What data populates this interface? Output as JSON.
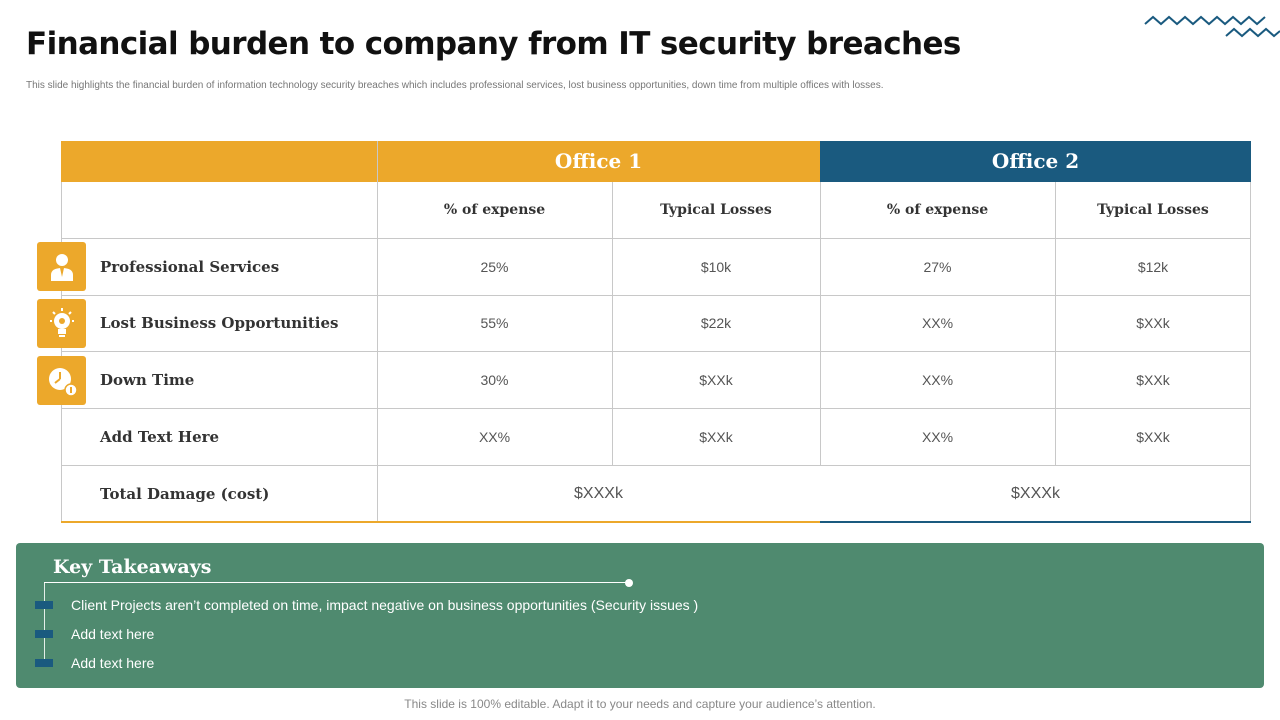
{
  "slide": {
    "title": "Financial burden to company from IT security breaches",
    "subtitle": "This slide highlights the financial burden of information technology security breaches which includes professional services, lost business opportunities, down time from multiple offices with losses.",
    "decoration": "zigzag-lines"
  },
  "colors": {
    "office1": "#eca82b",
    "office2": "#1a5a7f",
    "panel": "#4f8a6f"
  },
  "table": {
    "offices": [
      "Office 1",
      "Office 2"
    ],
    "column_headers": [
      "% of expense",
      "Typical Losses",
      "% of expense",
      "Typical Losses"
    ],
    "rows": [
      {
        "label": "Professional Services",
        "icon": "person-icon",
        "values": [
          "25%",
          "$10k",
          "27%",
          "$12k"
        ]
      },
      {
        "label": "Lost Business Opportunities",
        "icon": "lightbulb-gear-icon",
        "values": [
          "55%",
          "$22k",
          "XX%",
          "$XXk"
        ]
      },
      {
        "label": "Down Time",
        "icon": "clock-icon",
        "values": [
          "30%",
          "$XXk",
          "XX%",
          "$XXk"
        ]
      },
      {
        "label": "Add Text Here",
        "icon": "",
        "values": [
          "XX%",
          "$XXk",
          "XX%",
          "$XXk"
        ]
      }
    ],
    "total": {
      "label": "Total Damage (cost)",
      "office1": "$XXXk",
      "office2": "$XXXk"
    }
  },
  "takeaways": {
    "title": "Key Takeaways",
    "items": [
      "Client Projects aren’t completed on time, impact negative on business opportunities (Security issues )",
      "Add text here",
      "Add text here"
    ]
  },
  "footer": "This slide is 100% editable. Adapt it to your needs and capture your audience’s attention."
}
